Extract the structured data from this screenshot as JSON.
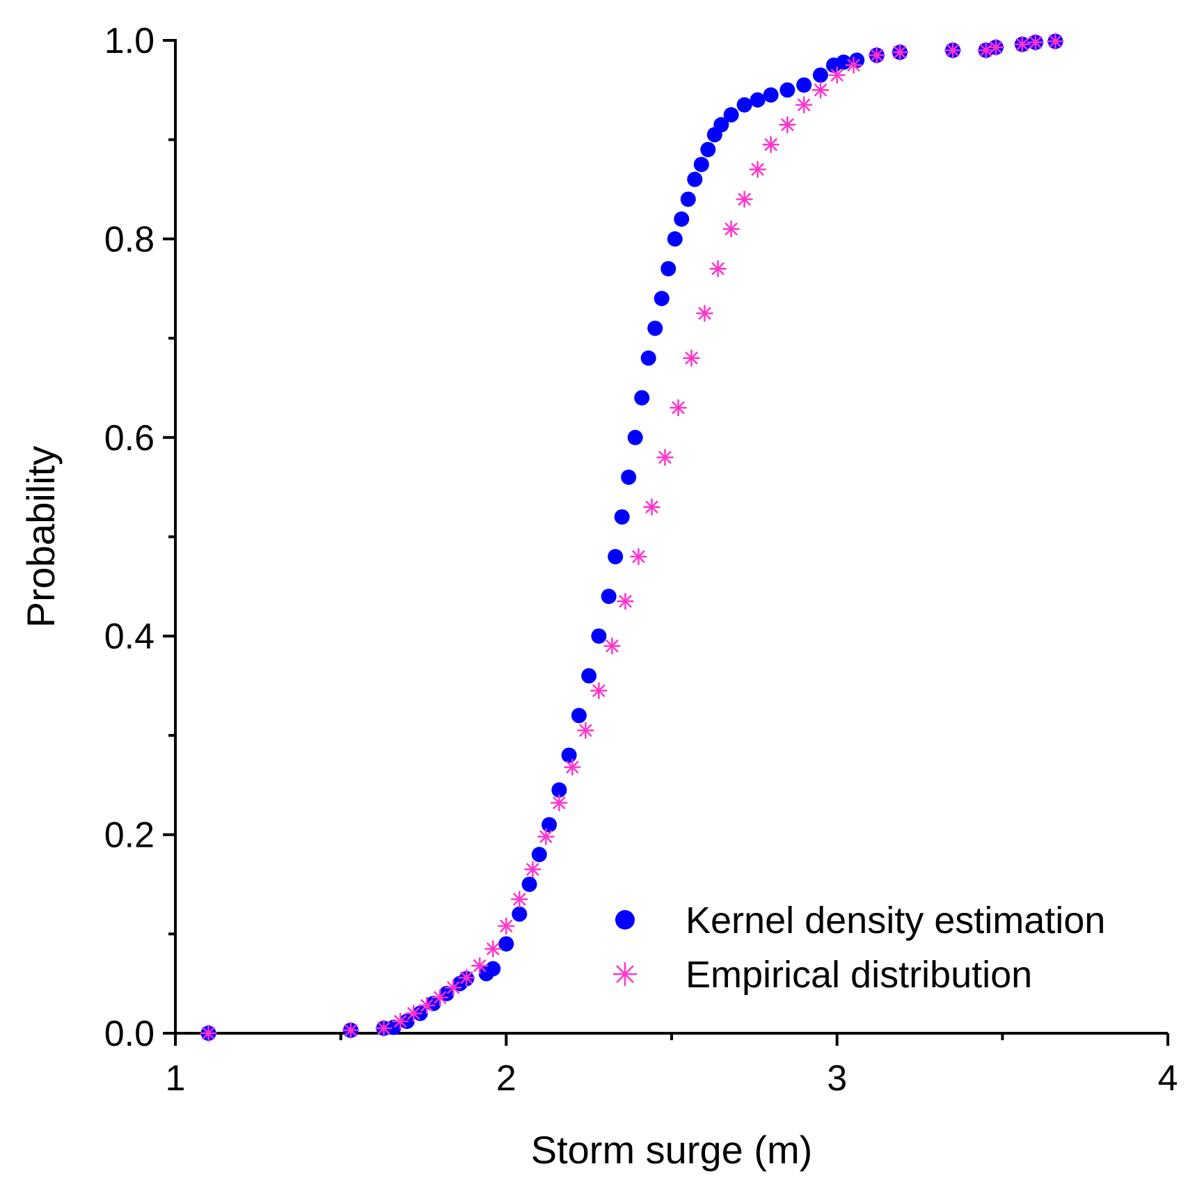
{
  "chart_data": {
    "type": "scatter",
    "title": "",
    "xlabel": "Storm surge (m)",
    "ylabel": "Probability",
    "xlim": [
      1,
      4
    ],
    "ylim": [
      0,
      1.0
    ],
    "x_ticks": [
      1,
      2,
      3,
      4
    ],
    "x_tick_labels": [
      "1",
      "2",
      "3",
      "4"
    ],
    "y_ticks": [
      0.0,
      0.2,
      0.4,
      0.6,
      0.8,
      1.0
    ],
    "y_tick_labels": [
      "0.0",
      "0.2",
      "0.4",
      "0.6",
      "0.8",
      "1.0"
    ],
    "grid": false,
    "legend_position": "bottom-right",
    "series": [
      {
        "name": "Kernel density estimation",
        "marker": "circle",
        "color": "#0000ff",
        "x": [
          1.1,
          1.53,
          1.63,
          1.66,
          1.7,
          1.74,
          1.78,
          1.82,
          1.86,
          1.88,
          1.94,
          1.96,
          2.0,
          2.04,
          2.07,
          2.1,
          2.13,
          2.16,
          2.19,
          2.22,
          2.25,
          2.28,
          2.31,
          2.33,
          2.35,
          2.37,
          2.39,
          2.41,
          2.43,
          2.45,
          2.47,
          2.49,
          2.51,
          2.53,
          2.55,
          2.57,
          2.59,
          2.61,
          2.63,
          2.65,
          2.68,
          2.72,
          2.76,
          2.8,
          2.85,
          2.9,
          2.95,
          2.99,
          3.02,
          3.06,
          3.12,
          3.19,
          3.35,
          3.45,
          3.48,
          3.56,
          3.6,
          3.66
        ],
        "y": [
          0.0,
          0.003,
          0.005,
          0.006,
          0.012,
          0.02,
          0.03,
          0.04,
          0.05,
          0.055,
          0.06,
          0.065,
          0.09,
          0.12,
          0.15,
          0.18,
          0.21,
          0.245,
          0.28,
          0.32,
          0.36,
          0.4,
          0.44,
          0.48,
          0.52,
          0.56,
          0.6,
          0.64,
          0.68,
          0.71,
          0.74,
          0.77,
          0.8,
          0.82,
          0.84,
          0.86,
          0.875,
          0.89,
          0.905,
          0.915,
          0.925,
          0.935,
          0.94,
          0.945,
          0.95,
          0.955,
          0.965,
          0.975,
          0.978,
          0.98,
          0.985,
          0.988,
          0.99,
          0.99,
          0.993,
          0.996,
          0.998,
          0.999
        ]
      },
      {
        "name": "Empirical distribution",
        "marker": "asterisk",
        "color": "#ff33cc",
        "x": [
          1.1,
          1.53,
          1.63,
          1.68,
          1.72,
          1.76,
          1.8,
          1.84,
          1.88,
          1.92,
          1.96,
          2.0,
          2.04,
          2.08,
          2.12,
          2.16,
          2.2,
          2.24,
          2.28,
          2.32,
          2.36,
          2.4,
          2.44,
          2.48,
          2.52,
          2.56,
          2.6,
          2.64,
          2.68,
          2.72,
          2.76,
          2.8,
          2.85,
          2.9,
          2.95,
          3.0,
          3.05,
          3.12,
          3.19,
          3.35,
          3.45,
          3.48,
          3.56,
          3.6,
          3.66
        ],
        "y": [
          0.0,
          0.003,
          0.005,
          0.012,
          0.02,
          0.028,
          0.036,
          0.046,
          0.056,
          0.068,
          0.085,
          0.108,
          0.135,
          0.165,
          0.198,
          0.232,
          0.268,
          0.305,
          0.345,
          0.39,
          0.435,
          0.48,
          0.53,
          0.58,
          0.63,
          0.68,
          0.725,
          0.77,
          0.81,
          0.84,
          0.87,
          0.895,
          0.915,
          0.935,
          0.95,
          0.965,
          0.975,
          0.985,
          0.988,
          0.99,
          0.99,
          0.993,
          0.996,
          0.998,
          0.999
        ]
      }
    ]
  }
}
